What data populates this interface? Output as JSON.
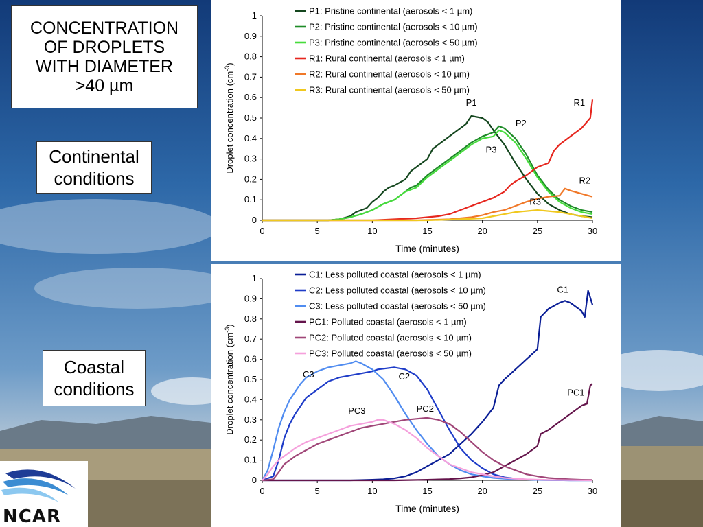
{
  "slide": {
    "title_lines": [
      "CONCENTRATION",
      "OF DROPLETS",
      "WITH DIAMETER",
      ">40 µm"
    ],
    "continental_lines": [
      "Continental",
      "conditions"
    ],
    "coastal_lines": [
      "Coastal",
      "conditions"
    ],
    "logo_text": "NCAR"
  },
  "chart_data": [
    {
      "type": "line",
      "title": "",
      "xlabel": "Time (minutes)",
      "ylabel": "Droplet concentration (cm-3)",
      "xlim": [
        0,
        30
      ],
      "ylim": [
        0,
        1
      ],
      "xticks": [
        "0",
        "5",
        "10",
        "15",
        "20",
        "25",
        "30"
      ],
      "yticks": [
        "0",
        "0.1",
        "0.2",
        "0.3",
        "0.4",
        "0.5",
        "0.6",
        "0.7",
        "0.8",
        "0.9",
        "1"
      ],
      "legend_position": "top",
      "series": [
        {
          "name": "P1: Pristine continental (aerosols < 1 µm)",
          "tag": "P1",
          "color": "#14461e",
          "x": [
            0,
            6,
            7,
            8,
            8.5,
            9,
            9.5,
            10,
            10.5,
            11,
            11.5,
            12,
            13,
            13.5,
            14,
            15,
            15.5,
            16,
            17,
            18,
            18.5,
            19,
            20,
            20.5,
            21,
            22,
            23,
            24,
            25,
            26,
            27,
            28,
            29,
            30
          ],
          "y": [
            0,
            0,
            0.005,
            0.02,
            0.04,
            0.05,
            0.06,
            0.09,
            0.11,
            0.14,
            0.16,
            0.17,
            0.2,
            0.24,
            0.26,
            0.3,
            0.35,
            0.37,
            0.41,
            0.45,
            0.47,
            0.51,
            0.5,
            0.48,
            0.44,
            0.37,
            0.28,
            0.2,
            0.13,
            0.08,
            0.05,
            0.03,
            0.02,
            0.015
          ]
        },
        {
          "name": "P2: Pristine continental (aerosols < 10 µm)",
          "tag": "P2",
          "color": "#1e8c28",
          "x": [
            0,
            6,
            7,
            8,
            9,
            10,
            11,
            12,
            13,
            13.5,
            14,
            15,
            16,
            17,
            18,
            19,
            20,
            21,
            21.5,
            22,
            23,
            24,
            25,
            26,
            27,
            28,
            29,
            30
          ],
          "y": [
            0,
            0,
            0.005,
            0.015,
            0.03,
            0.05,
            0.08,
            0.1,
            0.14,
            0.16,
            0.17,
            0.22,
            0.26,
            0.3,
            0.34,
            0.38,
            0.41,
            0.43,
            0.46,
            0.45,
            0.4,
            0.32,
            0.22,
            0.15,
            0.1,
            0.07,
            0.05,
            0.04
          ]
        },
        {
          "name": "P3: Pristine continental (aerosols < 50 µm)",
          "tag": "P3",
          "color": "#46dc3c",
          "x": [
            0,
            6,
            7,
            8,
            9,
            10,
            11,
            12,
            13,
            13.5,
            14,
            15,
            16,
            17,
            18,
            19,
            20,
            21,
            21.5,
            22,
            23,
            24,
            25,
            26,
            27,
            28,
            29,
            30
          ],
          "y": [
            0,
            0,
            0.005,
            0.015,
            0.03,
            0.05,
            0.08,
            0.1,
            0.14,
            0.15,
            0.16,
            0.21,
            0.25,
            0.29,
            0.33,
            0.37,
            0.4,
            0.41,
            0.44,
            0.43,
            0.38,
            0.3,
            0.21,
            0.14,
            0.09,
            0.06,
            0.04,
            0.03
          ]
        },
        {
          "name": "R1: Rural continental (aerosols < 1 µm)",
          "tag": "R1",
          "color": "#e6261e",
          "x": [
            0,
            10,
            14,
            16,
            17,
            18,
            19,
            20,
            21,
            22,
            22.5,
            23,
            24,
            25,
            26,
            26.5,
            27,
            28,
            29,
            29.8,
            30
          ],
          "y": [
            0,
            0,
            0.01,
            0.02,
            0.03,
            0.05,
            0.07,
            0.09,
            0.11,
            0.14,
            0.17,
            0.19,
            0.22,
            0.26,
            0.28,
            0.34,
            0.37,
            0.41,
            0.45,
            0.5,
            0.59
          ]
        },
        {
          "name": "R2: Rural continental (aerosols < 10 µm)",
          "tag": "R2",
          "color": "#f07828",
          "x": [
            0,
            14,
            17,
            19,
            20,
            21,
            22,
            23,
            24,
            25,
            26,
            27,
            27.5,
            28,
            29,
            30
          ],
          "y": [
            0,
            0,
            0.005,
            0.015,
            0.025,
            0.04,
            0.05,
            0.07,
            0.09,
            0.105,
            0.115,
            0.12,
            0.155,
            0.145,
            0.13,
            0.115
          ]
        },
        {
          "name": "R3: Rural continental (aerosols < 50 µm)",
          "tag": "R3",
          "color": "#f0c81e",
          "x": [
            0,
            15,
            18,
            20,
            21,
            22,
            23,
            24,
            25,
            26,
            27,
            28,
            29,
            30
          ],
          "y": [
            0,
            0,
            0.005,
            0.01,
            0.02,
            0.03,
            0.04,
            0.045,
            0.05,
            0.045,
            0.04,
            0.03,
            0.02,
            0.01
          ]
        }
      ],
      "annotations": [
        {
          "text": "P1",
          "x": 19,
          "y": 0.56
        },
        {
          "text": "P2",
          "x": 23.5,
          "y": 0.46
        },
        {
          "text": "P3",
          "x": 20.8,
          "y": 0.33
        },
        {
          "text": "R1",
          "x": 28.8,
          "y": 0.56
        },
        {
          "text": "R2",
          "x": 29.3,
          "y": 0.18
        },
        {
          "text": "R3",
          "x": 24.8,
          "y": 0.075
        }
      ]
    },
    {
      "type": "line",
      "title": "",
      "xlabel": "Time (minutes)",
      "ylabel": "Droplet concentration (cm-3)",
      "xlim": [
        0,
        30
      ],
      "ylim": [
        0,
        1
      ],
      "xticks": [
        "0",
        "5",
        "10",
        "15",
        "20",
        "25",
        "30"
      ],
      "yticks": [
        "0",
        "0.1",
        "0.2",
        "0.3",
        "0.4",
        "0.5",
        "0.6",
        "0.7",
        "0.8",
        "0.9",
        "1"
      ],
      "legend_position": "top",
      "series": [
        {
          "name": "C1: Less polluted coastal (aerosols < 1 µm)",
          "tag": "C1",
          "color": "#0a1e96",
          "x": [
            0,
            8,
            10,
            11,
            12,
            13,
            14,
            15,
            16,
            17,
            18,
            19,
            20,
            21,
            21.5,
            22,
            23,
            24,
            25,
            25.3,
            26,
            27,
            27.5,
            28,
            28.5,
            29,
            29.3,
            29.6,
            30
          ],
          "y": [
            0,
            0,
            0.003,
            0.005,
            0.01,
            0.02,
            0.04,
            0.07,
            0.1,
            0.13,
            0.18,
            0.23,
            0.29,
            0.36,
            0.47,
            0.5,
            0.55,
            0.6,
            0.65,
            0.81,
            0.85,
            0.88,
            0.89,
            0.88,
            0.86,
            0.84,
            0.81,
            0.94,
            0.87
          ]
        },
        {
          "name": "C2: Less polluted coastal (aerosols < 10 µm)",
          "tag": "C2",
          "color": "#1e3cc8",
          "x": [
            0,
            1,
            1.5,
            2,
            2.5,
            3,
            3.5,
            4,
            5,
            6,
            7,
            8,
            9,
            10,
            10.5,
            12,
            13,
            14,
            15,
            16,
            17,
            18,
            19,
            20,
            21,
            22,
            23,
            24,
            25,
            26,
            28,
            30
          ],
          "y": [
            0,
            0.02,
            0.1,
            0.21,
            0.28,
            0.33,
            0.37,
            0.41,
            0.45,
            0.49,
            0.51,
            0.52,
            0.53,
            0.54,
            0.55,
            0.56,
            0.55,
            0.52,
            0.45,
            0.35,
            0.25,
            0.16,
            0.1,
            0.06,
            0.03,
            0.015,
            0.008,
            0.004,
            0.002,
            0.001,
            0,
            0
          ]
        },
        {
          "name": "C3: Less polluted coastal (aerosols < 50 µm)",
          "tag": "C3",
          "color": "#508cf0",
          "x": [
            0,
            0.5,
            1,
            1.5,
            2,
            2.5,
            3,
            3.5,
            4,
            5,
            6,
            7,
            8,
            8.5,
            9,
            10,
            11,
            12,
            13,
            14,
            15,
            16,
            17,
            18,
            19,
            20,
            21,
            22,
            23,
            25,
            28,
            30
          ],
          "y": [
            0,
            0.05,
            0.15,
            0.26,
            0.34,
            0.4,
            0.44,
            0.48,
            0.51,
            0.54,
            0.56,
            0.57,
            0.58,
            0.59,
            0.58,
            0.55,
            0.5,
            0.42,
            0.33,
            0.25,
            0.18,
            0.12,
            0.08,
            0.05,
            0.03,
            0.02,
            0.012,
            0.008,
            0.005,
            0.002,
            0,
            0
          ]
        },
        {
          "name": "PC1: Polluted coastal (aerosols < 1 µm)",
          "tag": "PC1",
          "color": "#64144b",
          "x": [
            0,
            12,
            15,
            17,
            18,
            19,
            20,
            21,
            22,
            23,
            24,
            25,
            25.3,
            26,
            27,
            28,
            29,
            29.5,
            29.8,
            30
          ],
          "y": [
            0,
            0,
            0.003,
            0.006,
            0.01,
            0.015,
            0.025,
            0.04,
            0.07,
            0.1,
            0.13,
            0.17,
            0.23,
            0.25,
            0.29,
            0.33,
            0.37,
            0.38,
            0.47,
            0.48
          ]
        },
        {
          "name": "PC2: Polluted coastal (aerosols < 10 µm)",
          "tag": "PC2",
          "color": "#a04678",
          "x": [
            0,
            1,
            1.5,
            2,
            3,
            4,
            5,
            6,
            7,
            8,
            9,
            10,
            11,
            12,
            13,
            14,
            15,
            16,
            17,
            18,
            19,
            20,
            21,
            22,
            23,
            24,
            25,
            26,
            27,
            28,
            29,
            30
          ],
          "y": [
            0,
            0.005,
            0.04,
            0.08,
            0.12,
            0.15,
            0.18,
            0.2,
            0.22,
            0.24,
            0.26,
            0.27,
            0.28,
            0.29,
            0.3,
            0.305,
            0.31,
            0.3,
            0.28,
            0.24,
            0.19,
            0.14,
            0.1,
            0.07,
            0.05,
            0.03,
            0.02,
            0.012,
            0.008,
            0.005,
            0.003,
            0.002
          ]
        },
        {
          "name": "PC3: Polluted coastal (aerosols < 50 µm)",
          "tag": "PC3",
          "color": "#f5a0dc",
          "x": [
            0,
            0.5,
            1,
            1.5,
            2,
            3,
            4,
            5,
            6,
            7,
            8,
            9,
            10,
            10.5,
            11,
            12,
            13,
            14,
            15,
            16,
            17,
            18,
            19,
            20,
            21,
            22,
            23,
            24,
            26,
            28,
            30
          ],
          "y": [
            0,
            0.03,
            0.07,
            0.1,
            0.12,
            0.16,
            0.19,
            0.21,
            0.23,
            0.25,
            0.27,
            0.28,
            0.29,
            0.3,
            0.3,
            0.28,
            0.25,
            0.21,
            0.16,
            0.12,
            0.08,
            0.06,
            0.04,
            0.03,
            0.02,
            0.012,
            0.008,
            0.005,
            0.002,
            0.001,
            0
          ]
        }
      ],
      "annotations": [
        {
          "text": "C1",
          "x": 27.3,
          "y": 0.93
        },
        {
          "text": "C2",
          "x": 12.9,
          "y": 0.5
        },
        {
          "text": "C3",
          "x": 4.2,
          "y": 0.51
        },
        {
          "text": "PC1",
          "x": 28.5,
          "y": 0.42
        },
        {
          "text": "PC2",
          "x": 14.8,
          "y": 0.34
        },
        {
          "text": "PC3",
          "x": 8.6,
          "y": 0.33
        }
      ]
    }
  ]
}
